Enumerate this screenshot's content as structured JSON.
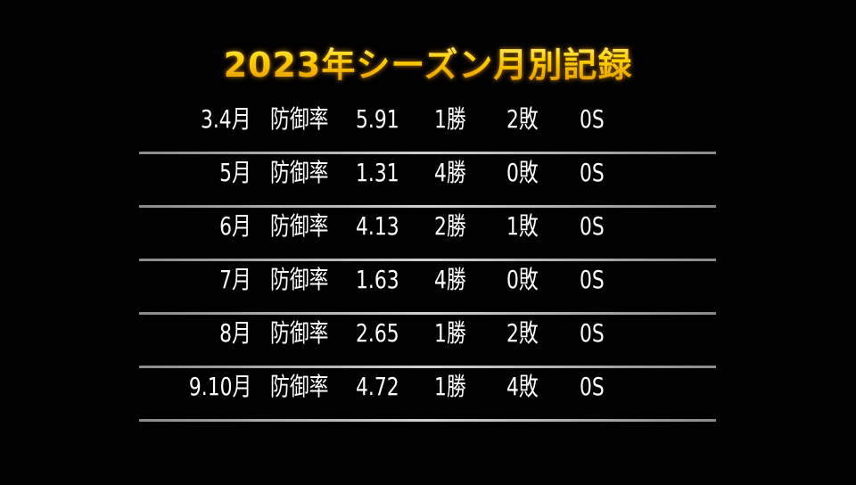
{
  "title": "2023年シーズン月別記録",
  "label": "防御率",
  "rows": [
    {
      "month": "3.4月",
      "era": "5.91",
      "wins": "1勝",
      "losses": "2敗",
      "saves": "0S"
    },
    {
      "month": "5月",
      "era": "1.31",
      "wins": "4勝",
      "losses": "0敗",
      "saves": "0S"
    },
    {
      "month": "6月",
      "era": "4.13",
      "wins": "2勝",
      "losses": "1敗",
      "saves": "0S"
    },
    {
      "month": "7月",
      "era": "1.63",
      "wins": "4勝",
      "losses": "0敗",
      "saves": "0S"
    },
    {
      "month": "8月",
      "era": "2.65",
      "wins": "1勝",
      "losses": "2敗",
      "saves": "0S"
    },
    {
      "month": "9.10月",
      "era": "4.72",
      "wins": "1勝",
      "losses": "4敗",
      "saves": "0S"
    }
  ]
}
